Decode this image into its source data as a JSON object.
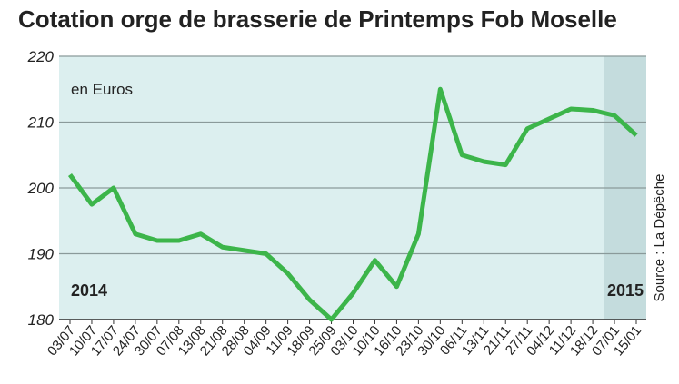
{
  "chart_data": {
    "type": "line",
    "title": "Cotation orge de brasserie de Printemps Fob Moselle",
    "unit_label": "en Euros",
    "source": "Source : La Dépêche",
    "annotations": [
      "2014",
      "2015"
    ],
    "categories": [
      "03/07",
      "10/07",
      "17/07",
      "24/07",
      "30/07",
      "07/08",
      "13/08",
      "21/08",
      "28/08",
      "04/09",
      "11/09",
      "18/09",
      "25/09",
      "03/10",
      "10/10",
      "16/10",
      "23/10",
      "30/10",
      "06/11",
      "13/11",
      "21/11",
      "27/11",
      "04/12",
      "11/12",
      "18/12",
      "07/01",
      "15/01"
    ],
    "series": [
      {
        "color": "#3cb54a",
        "values": [
          202,
          197.5,
          200,
          193,
          192,
          192,
          193,
          191,
          190.5,
          190,
          187,
          183,
          180,
          184,
          189,
          185,
          193,
          215,
          205,
          204,
          203.5,
          209,
          210.5,
          212,
          211.8,
          211,
          208
        ]
      }
    ],
    "ylim": [
      180,
      220
    ],
    "yticks": [
      180,
      190,
      200,
      210,
      220
    ],
    "grid": true
  }
}
